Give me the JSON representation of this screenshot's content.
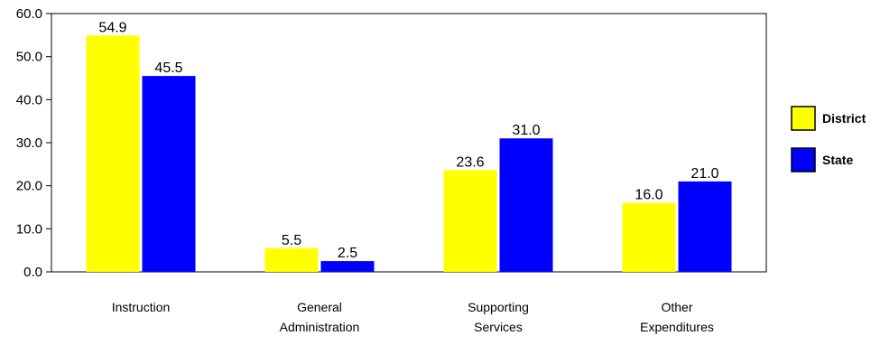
{
  "chart_data": {
    "type": "bar",
    "title": "",
    "xlabel": "",
    "ylabel": "",
    "categories": [
      [
        "Instruction"
      ],
      [
        "General",
        "Administration"
      ],
      [
        "Supporting",
        "Services"
      ],
      [
        "Other",
        "Expenditures"
      ]
    ],
    "series": [
      {
        "name": "District",
        "color": "#ffff00",
        "values": [
          54.9,
          5.5,
          23.6,
          16.0
        ]
      },
      {
        "name": "State",
        "color": "#0000ff",
        "values": [
          45.5,
          2.5,
          31.0,
          21.0
        ]
      }
    ],
    "ylim": [
      0,
      60
    ],
    "yticks": [
      "0.0",
      "10.0",
      "20.0",
      "30.0",
      "40.0",
      "50.0",
      "60.0"
    ],
    "value_labels": [
      [
        "54.9",
        "5.5",
        "23.6",
        "16.0"
      ],
      [
        "45.5",
        "2.5",
        "31.0",
        "21.0"
      ]
    ],
    "grid": false,
    "legend_position": "right"
  }
}
